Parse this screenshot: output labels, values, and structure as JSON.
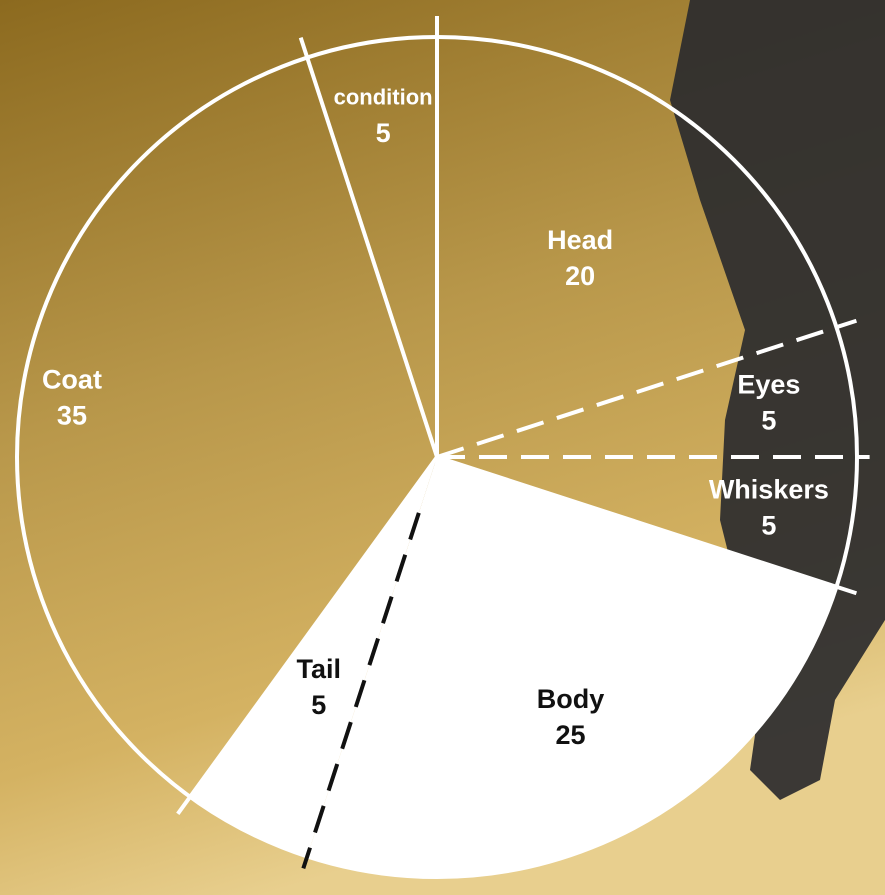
{
  "chart_data": {
    "type": "pie",
    "categories": [
      "Head",
      "Eyes",
      "Whiskers",
      "Body",
      "Tail",
      "Coat",
      "condition"
    ],
    "values": [
      20,
      5,
      5,
      25,
      5,
      35,
      5
    ],
    "colors": [
      "none",
      "none",
      "none",
      "#ffffff",
      "#ffffff",
      "none",
      "none"
    ]
  }
}
